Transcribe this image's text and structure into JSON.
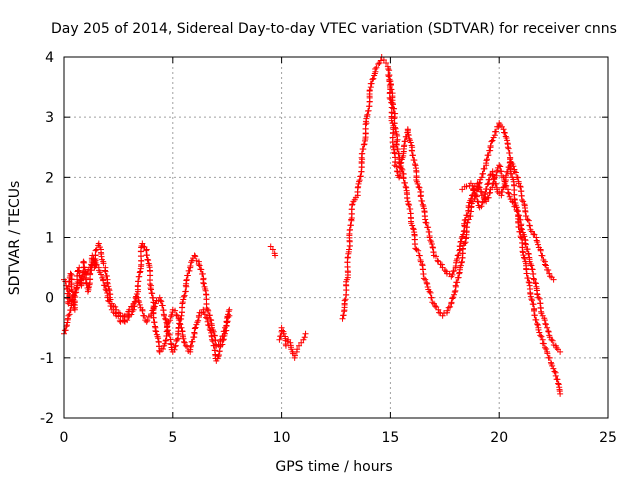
{
  "chart_data": {
    "type": "scatter",
    "title": "Day 205 of 2014, Sidereal Day-to-day VTEC variation (SDTVAR) for receiver cnns",
    "xlabel": "GPS time / hours",
    "ylabel": "SDTVAR / TECUs",
    "xlim": [
      0,
      25
    ],
    "ylim": [
      -2,
      4
    ],
    "xticks": [
      0,
      5,
      10,
      15,
      20,
      25
    ],
    "yticks": [
      -2,
      -1,
      0,
      1,
      2,
      3,
      4
    ],
    "grid": true,
    "marker": "+",
    "color": "#ff0000",
    "series": [
      {
        "name": "cnns",
        "segments": [
          {
            "x": [
              0.0,
              0.1,
              0.2,
              0.3,
              0.4,
              0.5,
              0.6,
              0.7,
              0.8,
              0.9,
              1.0,
              1.1,
              1.2,
              1.3,
              1.4,
              1.5,
              1.6,
              1.7,
              1.8,
              1.9,
              2.0,
              2.1,
              2.2,
              2.4,
              2.6,
              2.8,
              3.0,
              3.2,
              3.4,
              3.6,
              3.8,
              4.0,
              4.2,
              4.4,
              4.6,
              4.8,
              5.0,
              5.2,
              5.4,
              5.6,
              5.8,
              6.0,
              6.2,
              6.4,
              6.6,
              6.8,
              7.0,
              7.2,
              7.4,
              7.6
            ],
            "y": [
              0.3,
              0.2,
              -0.1,
              0.4,
              0.1,
              -0.2,
              0.3,
              0.5,
              0.2,
              0.6,
              0.3,
              0.1,
              0.4,
              0.7,
              0.5,
              0.8,
              0.9,
              0.8,
              0.6,
              0.5,
              0.3,
              0.0,
              -0.1,
              -0.2,
              -0.3,
              -0.4,
              -0.3,
              -0.2,
              0.1,
              0.9,
              0.8,
              0.2,
              -0.5,
              -0.9,
              -0.8,
              -0.4,
              -0.2,
              -0.3,
              -0.5,
              -0.8,
              -0.9,
              -0.6,
              -0.3,
              -0.2,
              -0.4,
              -0.7,
              -1.05,
              -0.8,
              -0.6,
              -0.2
            ]
          },
          {
            "x": [
              0.0,
              0.2,
              0.4,
              0.6,
              0.8,
              1.0,
              1.2,
              1.4,
              1.6,
              1.8,
              2.0,
              2.2,
              2.4,
              2.6,
              2.8,
              3.0,
              3.2,
              3.4,
              3.6,
              3.8,
              4.0,
              4.2,
              4.4,
              4.6,
              4.8,
              5.0,
              5.2,
              5.4,
              5.6,
              5.8,
              6.0,
              6.2,
              6.4,
              6.6,
              6.8,
              7.0,
              7.2,
              7.4,
              7.6
            ],
            "y": [
              -0.6,
              -0.3,
              0.0,
              0.2,
              0.3,
              0.4,
              0.5,
              0.6,
              0.5,
              0.3,
              0.0,
              -0.2,
              -0.3,
              -0.4,
              -0.3,
              -0.2,
              -0.1,
              0.0,
              -0.2,
              -0.4,
              -0.3,
              -0.1,
              0.0,
              -0.3,
              -0.6,
              -0.9,
              -0.7,
              -0.3,
              0.2,
              0.5,
              0.7,
              0.6,
              0.3,
              -0.2,
              -0.5,
              -0.8,
              -0.7,
              -0.5,
              -0.3
            ]
          },
          {
            "x": [
              9.5,
              9.6,
              9.7
            ],
            "y": [
              0.85,
              0.8,
              0.7
            ]
          },
          {
            "x": [
              9.9,
              10.0,
              10.1,
              10.2,
              10.3,
              10.4,
              10.5,
              10.6,
              10.7,
              10.8,
              10.9,
              11.0,
              11.1
            ],
            "y": [
              -0.7,
              -0.5,
              -0.6,
              -0.8,
              -0.7,
              -0.75,
              -0.9,
              -1.0,
              -0.9,
              -0.8,
              -0.75,
              -0.7,
              -0.6
            ]
          },
          {
            "x": [
              12.8,
              12.9,
              13.0,
              13.1,
              13.2,
              13.3,
              13.5,
              13.7,
              13.9,
              14.1,
              14.3,
              14.5,
              14.6,
              14.7,
              14.8,
              14.9,
              15.0,
              15.1,
              15.2,
              15.3,
              15.4,
              15.6,
              15.8,
              16.0,
              16.2,
              16.4,
              16.6,
              16.8,
              17.0,
              17.2,
              17.4,
              17.6,
              17.8,
              18.0,
              18.2,
              18.4,
              18.6,
              18.8,
              19.0,
              19.2,
              19.4,
              19.6,
              19.8,
              20.0,
              20.2,
              20.4,
              20.6,
              20.8,
              21.0,
              21.2,
              21.4,
              21.6,
              21.8,
              22.0,
              22.2,
              22.4,
              22.6,
              22.8
            ],
            "y": [
              -0.35,
              -0.05,
              0.3,
              0.8,
              1.3,
              1.6,
              1.7,
              2.3,
              2.9,
              3.5,
              3.8,
              3.9,
              4.0,
              3.95,
              3.9,
              3.8,
              3.6,
              3.4,
              3.0,
              2.6,
              2.3,
              2.0,
              1.6,
              1.2,
              0.8,
              0.6,
              0.3,
              0.1,
              -0.1,
              -0.2,
              -0.3,
              -0.25,
              -0.1,
              0.2,
              0.5,
              0.9,
              1.3,
              1.6,
              1.8,
              2.0,
              2.2,
              2.5,
              2.7,
              2.9,
              2.8,
              2.5,
              2.0,
              1.5,
              1.0,
              0.6,
              0.2,
              -0.2,
              -0.5,
              -0.7,
              -0.9,
              -1.1,
              -1.3,
              -1.6
            ]
          },
          {
            "x": [
              14.9,
              15.0,
              15.1,
              15.2,
              15.4,
              15.6,
              15.8,
              16.0,
              16.2,
              16.4,
              16.6,
              16.8,
              17.0,
              17.2,
              17.4,
              17.6,
              17.8,
              18.0,
              18.2,
              18.4,
              18.6,
              18.8,
              19.0,
              19.2,
              19.4,
              19.6,
              19.8,
              20.0,
              20.2,
              20.4,
              20.6,
              20.8,
              21.0,
              21.2,
              21.4,
              21.6,
              21.8,
              22.0,
              22.2,
              22.4,
              22.6,
              22.8
            ],
            "y": [
              3.7,
              3.3,
              2.9,
              2.2,
              2.0,
              2.4,
              2.8,
              2.5,
              2.0,
              1.7,
              1.3,
              1.0,
              0.7,
              0.6,
              0.5,
              0.4,
              0.35,
              0.5,
              0.8,
              1.2,
              1.5,
              1.8,
              1.9,
              1.7,
              1.6,
              1.8,
              2.0,
              2.2,
              2.0,
              1.8,
              1.6,
              1.5,
              1.2,
              0.9,
              0.6,
              0.3,
              0.0,
              -0.3,
              -0.5,
              -0.7,
              -0.8,
              -0.9
            ]
          },
          {
            "x": [
              18.3,
              18.5,
              18.7,
              18.9,
              19.1,
              19.3,
              19.5,
              19.7,
              19.9,
              20.1,
              20.3,
              20.5,
              20.7,
              20.9,
              21.1,
              21.3,
              21.5,
              21.7,
              21.9,
              22.1,
              22.3,
              22.5
            ],
            "y": [
              1.8,
              1.85,
              1.9,
              1.7,
              1.5,
              1.6,
              1.9,
              2.1,
              1.8,
              1.7,
              2.0,
              2.3,
              2.1,
              1.9,
              1.6,
              1.3,
              1.1,
              1.0,
              0.8,
              0.6,
              0.4,
              0.3
            ]
          }
        ]
      }
    ]
  }
}
